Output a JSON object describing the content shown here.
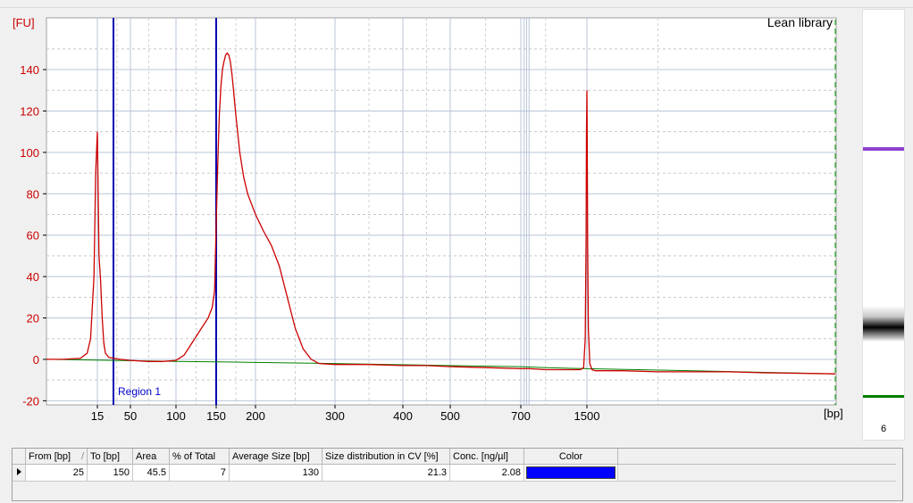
{
  "chart_data": {
    "type": "line",
    "title": "Lean library",
    "ylabel": "[FU]",
    "xlabel": "[bp]",
    "ylim": [
      -22,
      165
    ],
    "y_ticks": [
      -20,
      0,
      20,
      40,
      60,
      80,
      100,
      120,
      140
    ],
    "x_ticks": [
      {
        "label": "15",
        "bp": 15
      },
      {
        "label": "50",
        "bp": 50
      },
      {
        "label": "100",
        "bp": 100
      },
      {
        "label": "150",
        "bp": 150
      },
      {
        "label": "200",
        "bp": 200
      },
      {
        "label": "300",
        "bp": 300
      },
      {
        "label": "400",
        "bp": 400
      },
      {
        "label": "500",
        "bp": 500
      },
      {
        "label": "700",
        "bp": 700
      },
      {
        "label": "1500",
        "bp": 1500
      }
    ],
    "region": {
      "label": "Region 1",
      "from_bp": 25,
      "to_bp": 150
    },
    "series": [
      {
        "color": "#cc0000",
        "x": [
          0,
          5,
          10,
          12,
          13,
          14,
          14.5,
          15,
          15.5,
          16,
          17,
          18,
          19,
          20,
          22,
          25,
          35,
          50,
          70,
          85,
          100,
          110,
          120,
          130,
          140,
          145,
          148,
          150,
          152,
          154,
          156,
          158,
          160,
          162,
          164,
          166,
          168,
          170,
          172,
          175,
          180,
          185,
          190,
          195,
          200,
          210,
          220,
          230,
          240,
          250,
          260,
          270,
          280,
          300,
          350,
          400,
          450,
          500,
          600,
          700,
          800,
          1000,
          1200,
          1350,
          1420,
          1460,
          1480,
          1490,
          1495,
          1500,
          1505,
          1510,
          1520,
          1540,
          1570,
          1620,
          1700,
          2000,
          2500,
          3000,
          3500,
          4000,
          5000
        ],
        "y": [
          0,
          0,
          0.5,
          3,
          10,
          40,
          90,
          110,
          80,
          50,
          38,
          20,
          8,
          3,
          1,
          0.5,
          0,
          -0.5,
          -1,
          -1,
          -0.5,
          2,
          8,
          14,
          20,
          25,
          33,
          65,
          95,
          118,
          132,
          140,
          144,
          147,
          148,
          147,
          144,
          138,
          130,
          118,
          100,
          88,
          80,
          75,
          70,
          62,
          55,
          45,
          30,
          15,
          5,
          0,
          -2,
          -2.5,
          -2.5,
          -3,
          -3,
          -3.5,
          -4,
          -4.5,
          -4.5,
          -5,
          -5,
          -5,
          -5,
          -4,
          10,
          60,
          110,
          130,
          100,
          55,
          15,
          -2,
          -5,
          -5.5,
          -5.5,
          -5.5,
          -6,
          -6,
          -6,
          -6.5,
          -7
        ]
      },
      {
        "color": "#008000",
        "x": [
          0,
          100,
          150,
          200,
          300,
          500,
          700,
          1000,
          1500,
          3000,
          5000
        ],
        "y": [
          0,
          -1,
          -1.2,
          -1.5,
          -2,
          -3,
          -3.5,
          -4,
          -4.5,
          -5.5,
          -7
        ]
      }
    ]
  },
  "gel": {
    "lane_label": "6",
    "bands": [
      {
        "name": "upper-marker",
        "color": "#9040d0"
      },
      {
        "name": "library-smear",
        "color": "#000000"
      },
      {
        "name": "lower-marker",
        "color": "#008000"
      }
    ]
  },
  "table": {
    "headers": [
      "From [bp]",
      "To [bp]",
      "Area",
      "% of Total",
      "Average Size [bp]",
      "Size distribution in CV [%]",
      "Conc. [ng/µl]",
      "Color"
    ],
    "rows": [
      {
        "from": "25",
        "to": "150",
        "area": "45.5",
        "pct": "7",
        "avg": "130",
        "cv": "21.3",
        "conc": "2.08",
        "color": "#0000ff"
      }
    ]
  }
}
